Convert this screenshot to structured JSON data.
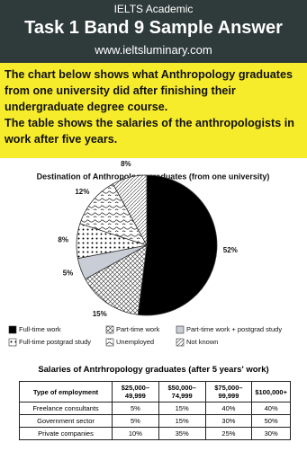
{
  "header": {
    "kicker": "IELTS Academic",
    "title": "Task 1 Band 9 Sample Answer",
    "url": "www.ieltsluminary.com"
  },
  "prompt": [
    "The chart below shows what Anthropology graduates from one university did after finishing their undergraduate degree course.",
    "The table shows the salaries of the anthropologists in work after five years."
  ],
  "chart_data": {
    "type": "pie",
    "title": "Destination of Anthropology graduates (from one university)",
    "categories": [
      "Full-time work",
      "Part-time work",
      "Part-time work + postgrad study",
      "Full-time postgrad study",
      "Unemployed",
      "Not known"
    ],
    "values": [
      52,
      15,
      5,
      8,
      12,
      8
    ],
    "value_labels": [
      "52%",
      "15%",
      "5%",
      "8%",
      "12%",
      "8%"
    ]
  },
  "table": {
    "title": "Salaries of Antrhropology graduates (after 5 years' work)",
    "header": [
      "Type of employment",
      "$25,000–49,999",
      "$50,000–74,999",
      "$75,000–99,999",
      "$100,000+"
    ],
    "rows": [
      [
        "Freelance consultants",
        "5%",
        "15%",
        "40%",
        "40%"
      ],
      [
        "Government sector",
        "5%",
        "15%",
        "30%",
        "50%"
      ],
      [
        "Private companies",
        "10%",
        "35%",
        "25%",
        "30%"
      ]
    ]
  }
}
